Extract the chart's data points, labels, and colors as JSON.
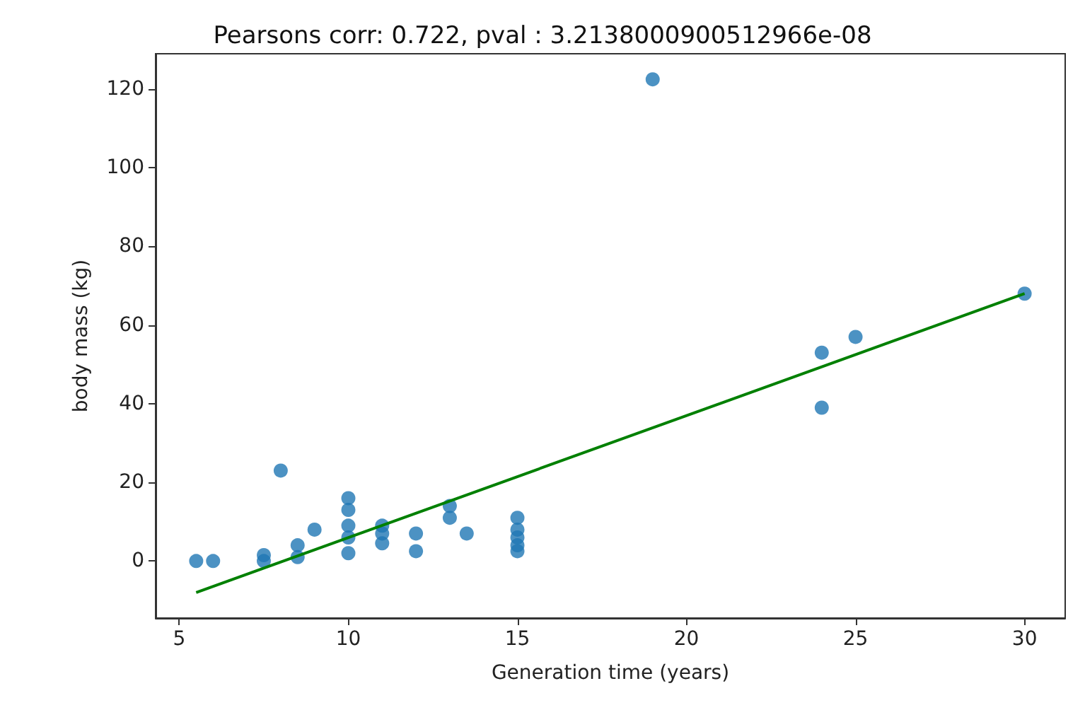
{
  "chart_data": {
    "type": "scatter",
    "title": "Pearsons corr: 0.722, pval : 3.2138000900512966e-08",
    "xlabel": "Generation time (years)",
    "ylabel": "body mass (kg)",
    "xlim": [
      4.3,
      31.2
    ],
    "xticks": [
      5,
      10,
      15,
      20,
      25,
      30
    ],
    "ylim": [
      -14.5,
      129
    ],
    "yticks": [
      0,
      20,
      40,
      60,
      80,
      100,
      120
    ],
    "grid": false,
    "marker": "circle",
    "series": [
      {
        "color": "#1f77b4",
        "x": [
          5.5,
          6,
          7.5,
          7.5,
          8,
          8.5,
          8.5,
          9,
          10,
          10,
          10,
          10,
          10,
          11,
          11,
          11,
          12,
          12,
          13,
          13,
          13.5,
          15,
          15,
          15,
          15,
          15,
          19,
          24,
          24,
          25,
          30
        ],
        "values": [
          0,
          0,
          0,
          1.5,
          23,
          1,
          4,
          8,
          2,
          6,
          9,
          13,
          16,
          4.5,
          7,
          9,
          2.5,
          7,
          11,
          14,
          7,
          2.5,
          4,
          6,
          8,
          11,
          122.5,
          53,
          39,
          57,
          68
        ]
      },
      {
        "type": "line",
        "color": "#008000",
        "x": [
          5.5,
          30
        ],
        "values": [
          -8,
          68
        ],
        "marker": "none",
        "line_style": "solid"
      }
    ]
  }
}
